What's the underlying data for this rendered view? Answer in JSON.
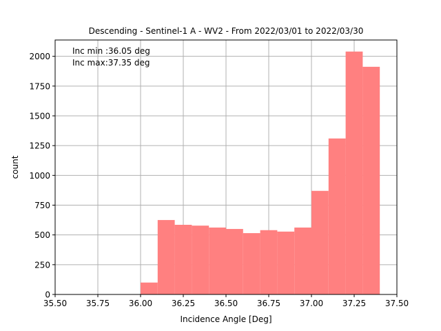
{
  "chart_data": {
    "type": "bar",
    "title": "Descending - Sentinel-1 A - WV2 - From 2022/03/01 to 2022/03/30",
    "xlabel": "Incidence Angle [Deg]",
    "ylabel": "count",
    "xlim": [
      35.5,
      37.5
    ],
    "ylim": [
      0,
      2137
    ],
    "xticks": [
      "35.50",
      "35.75",
      "36.00",
      "36.25",
      "36.50",
      "36.75",
      "37.00",
      "37.25",
      "37.50"
    ],
    "xtick_values": [
      35.5,
      35.75,
      36.0,
      36.25,
      36.5,
      36.75,
      37.0,
      37.25,
      37.5
    ],
    "yticks": [
      "0",
      "250",
      "500",
      "750",
      "1000",
      "1250",
      "1500",
      "1750",
      "2000"
    ],
    "ytick_values": [
      0,
      250,
      500,
      750,
      1000,
      1250,
      1500,
      1750,
      2000
    ],
    "grid": true,
    "bar_color": "#ff8080",
    "bin_edges": [
      36.0,
      36.1,
      36.2,
      36.3,
      36.4,
      36.5,
      36.6,
      36.7,
      36.8,
      36.9,
      37.0,
      37.1,
      37.2,
      37.3,
      37.4
    ],
    "values": [
      100,
      625,
      585,
      578,
      562,
      550,
      515,
      540,
      528,
      562,
      870,
      1310,
      2040,
      1912
    ],
    "annotations": [
      "Inc min :36.05 deg",
      "Inc max:37.35 deg"
    ]
  }
}
